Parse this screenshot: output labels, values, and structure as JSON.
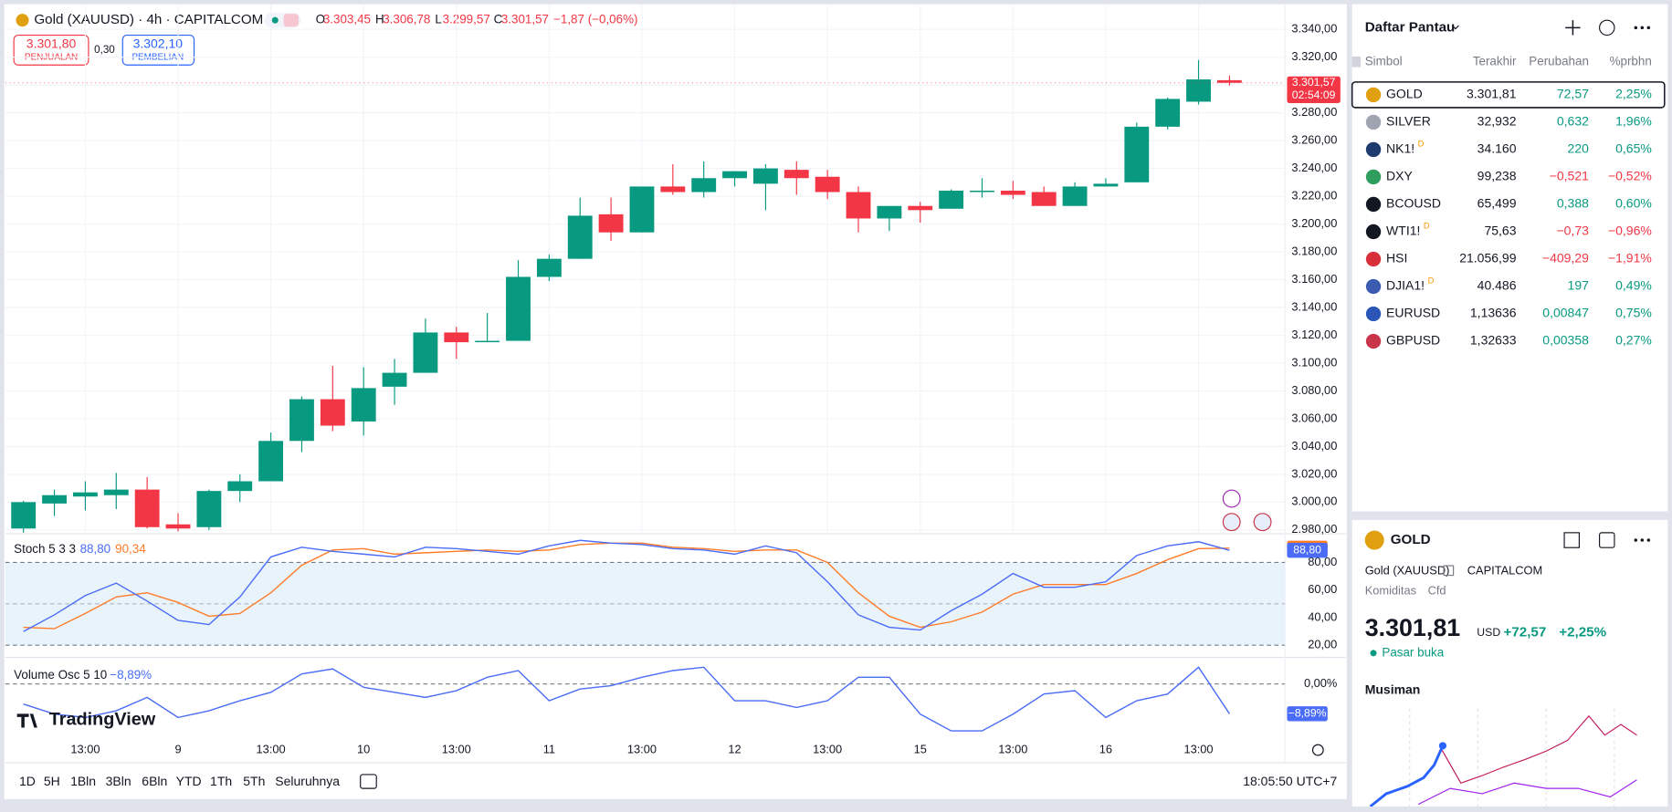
{
  "header": {
    "symbol": "Gold (XAUUSD) · 4h · CAPITALCOM",
    "ohlc": [
      {
        "key": "O",
        "value": "3.303,45"
      },
      {
        "key": "H",
        "value": "3.306,78"
      },
      {
        "key": "L",
        "value": "3.299,57"
      },
      {
        "key": "C",
        "value": "3.301,57"
      }
    ],
    "change": "−1,87 (−0,06%)",
    "sell": {
      "price": "3.301,80",
      "label": "PENJUALAN"
    },
    "spread": "0,30",
    "buy": {
      "price": "3.302,10",
      "label": "PEMBELIAN"
    }
  },
  "chart_data": {
    "type": "candlestick",
    "categories": [
      null,
      null,
      "13:00",
      null,
      null,
      "9",
      null,
      null,
      "13:00",
      null,
      null,
      "10",
      null,
      null,
      "13:00",
      null,
      null,
      "11",
      null,
      null,
      "13:00",
      null,
      null,
      "12",
      null,
      null,
      "13:00",
      null,
      null,
      "15",
      null,
      null,
      "13:00",
      null,
      null,
      "16",
      null,
      null,
      "13:00",
      null
    ],
    "open": [
      2981,
      2999,
      3004,
      3005,
      3009,
      2984,
      2982,
      3008,
      3015,
      3044,
      3074,
      3058,
      3083,
      3093,
      3122,
      3115,
      3116,
      3162,
      3175,
      3207,
      3194,
      3227,
      3223,
      3233,
      3229,
      3239,
      3234,
      3223,
      3204,
      3213,
      3211,
      3223,
      3224,
      3223,
      3213,
      3227,
      3230,
      3270,
      3288,
      3303.45
    ],
    "high": [
      3001,
      3009,
      3015,
      3021,
      3018,
      2992,
      3009,
      3020,
      3050,
      3076,
      3098,
      3097,
      3103,
      3132,
      3126,
      3136,
      3174,
      3178,
      3219,
      3219,
      3227,
      3243,
      3245,
      3238,
      3243,
      3245,
      3239,
      3227,
      3213,
      3216,
      3225,
      3233,
      3231,
      3227,
      3230,
      3233,
      3273,
      3291,
      3318,
      3306.78
    ],
    "low": [
      2978,
      2990,
      2994,
      2995,
      2981,
      2979,
      2980,
      3000,
      3015,
      3036,
      3051,
      3048,
      3070,
      3093,
      3103,
      3115,
      3116,
      3159,
      3175,
      3188,
      3194,
      3221,
      3219,
      3227,
      3210,
      3221,
      3218,
      3194,
      3195,
      3201,
      3211,
      3219,
      3218,
      3213,
      3213,
      3227,
      3230,
      3268,
      3286,
      3299.57
    ],
    "close": [
      3000,
      3005,
      3007,
      3009,
      2982,
      2981,
      3008,
      3015,
      3044,
      3074,
      3055,
      3082,
      3093,
      3122,
      3115,
      3116,
      3162,
      3175,
      3206,
      3194,
      3227,
      3223,
      3233,
      3238,
      3240,
      3233,
      3223,
      3204,
      3213,
      3210,
      3224,
      3224,
      3221,
      3213,
      3227,
      3229,
      3270,
      3290,
      3304,
      3301.57
    ],
    "up_color": "#089981",
    "down_color": "#f23645",
    "ylim": [
      2978,
      3355
    ],
    "yticks": [
      {
        "value": 2980,
        "label": "2.980,00"
      },
      {
        "value": 3000,
        "label": "3.000,00"
      },
      {
        "value": 3020,
        "label": "3.020,00"
      },
      {
        "value": 3040,
        "label": "3.040,00"
      },
      {
        "value": 3060,
        "label": "3.060,00"
      },
      {
        "value": 3080,
        "label": "3.080,00"
      },
      {
        "value": 3100,
        "label": "3.100,00"
      },
      {
        "value": 3120,
        "label": "3.120,00"
      },
      {
        "value": 3140,
        "label": "3.140,00"
      },
      {
        "value": 3160,
        "label": "3.160,00"
      },
      {
        "value": 3180,
        "label": "3.180,00"
      },
      {
        "value": 3200,
        "label": "3.200,00"
      },
      {
        "value": 3220,
        "label": "3.220,00"
      },
      {
        "value": 3240,
        "label": "3.240,00"
      },
      {
        "value": 3260,
        "label": "3.260,00"
      },
      {
        "value": 3280,
        "label": "3.280,00"
      },
      {
        "value": 3300,
        "label": "3.300,00"
      },
      {
        "value": 3320,
        "label": "3.320,00"
      },
      {
        "value": 3340,
        "label": "3.340,00"
      }
    ],
    "grid": true,
    "last_price_label": "3.301,57",
    "countdown": "02:54:09"
  },
  "stoch": {
    "title": "Stoch 5 3 3",
    "ylim": [
      12,
      100
    ],
    "yticks": [
      {
        "value": 20,
        "label": "20,00"
      },
      {
        "value": 40,
        "label": "40,00"
      },
      {
        "value": 60,
        "label": "60,00"
      },
      {
        "value": 80,
        "label": "80,00"
      }
    ],
    "band": [
      20,
      80
    ],
    "midline": 50,
    "series": [
      {
        "color": "#ff7c2a",
        "last_label": "90,34",
        "values": [
          33,
          32,
          43,
          55,
          58,
          51,
          41,
          43,
          58,
          78,
          89,
          90,
          86,
          87,
          88,
          89,
          88,
          89,
          93,
          94,
          94,
          91,
          90,
          88,
          89,
          89,
          80,
          58,
          41,
          33,
          37,
          44,
          57,
          64,
          64,
          64,
          72,
          82,
          90,
          90.34
        ]
      },
      {
        "color": "#4a6cf7",
        "last_label": "88,80",
        "values": [
          30,
          42,
          56,
          65,
          52,
          38,
          35,
          55,
          84,
          91,
          88,
          86,
          84,
          91,
          90,
          88,
          86,
          92,
          96,
          94,
          93,
          90,
          89,
          86,
          92,
          87,
          66,
          42,
          33,
          31,
          45,
          57,
          72,
          62,
          62,
          66,
          85,
          92,
          95,
          88.8
        ]
      }
    ]
  },
  "volume_osc": {
    "title": "Volume Osc 5 10",
    "ylim": [
      -17.5,
      7
    ],
    "yticks": [
      {
        "value": 0,
        "label": "0,00%"
      }
    ],
    "series": [
      {
        "color": "#4a6cf7",
        "last_label": "−8,89%",
        "values": [
          -6,
          -9,
          -10,
          -8,
          -4,
          -10,
          -8,
          -5,
          -2.5,
          3,
          4.5,
          -1,
          -2.5,
          -4,
          -2,
          2,
          4,
          -5,
          -1.5,
          -0.5,
          2,
          4,
          5,
          -5,
          -5,
          -7,
          -5,
          2,
          2,
          -9,
          -14,
          -14,
          -9,
          -3,
          -2,
          -10,
          -5,
          -3,
          5,
          -8.89
        ]
      }
    ]
  },
  "branding": {
    "logo": "TradingView"
  },
  "toolbar": {
    "ranges": [
      "1D",
      "5H",
      "1Bln",
      "3Bln",
      "6Bln",
      "YTD",
      "1Th",
      "5Th",
      "Seluruhnya"
    ],
    "clock": "18:05:50 UTC+7"
  },
  "watchlist": {
    "title": "Daftar Pantau",
    "columns": [
      "Simbol",
      "Terakhir",
      "Perubahan",
      "%prbhn"
    ],
    "rows": [
      {
        "symbol": "GOLD",
        "last": "3.301,81",
        "change": "72,57",
        "pct": "2,25%",
        "color": "#089981",
        "icon_color": "#e0a010"
      },
      {
        "symbol": "SILVER",
        "last": "32,932",
        "change": "0,632",
        "pct": "1,96%",
        "color": "#089981",
        "icon_color": "#a0a4b0"
      },
      {
        "symbol": "NK1!",
        "badge": "D",
        "last": "34.160",
        "change": "220",
        "pct": "0,65%",
        "color": "#089981",
        "icon_color": "#1e3a6e"
      },
      {
        "symbol": "DXY",
        "last": "99,238",
        "change": "−0,521",
        "pct": "−0,52%",
        "color": "#f23645",
        "icon_color": "#2e9d5e"
      },
      {
        "symbol": "BCOUSD",
        "last": "65,499",
        "change": "0,388",
        "pct": "0,60%",
        "color": "#089981",
        "icon_color": "#131722"
      },
      {
        "symbol": "WTI1!",
        "badge": "D",
        "last": "75,63",
        "change": "−0,73",
        "pct": "−0,96%",
        "color": "#f23645",
        "icon_color": "#131722"
      },
      {
        "symbol": "HSI",
        "last": "21.056,99",
        "change": "−409,29",
        "pct": "−1,91%",
        "color": "#f23645",
        "icon_color": "#d8303a"
      },
      {
        "symbol": "DJIA1!",
        "badge": "D",
        "last": "40.486",
        "change": "197",
        "pct": "0,49%",
        "color": "#089981",
        "icon_color": "#3a5bb0"
      },
      {
        "symbol": "EURUSD",
        "last": "1,13636",
        "change": "0,00847",
        "pct": "0,75%",
        "color": "#089981",
        "icon_color": "#2a56b8"
      },
      {
        "symbol": "GBPUSD",
        "last": "1,32633",
        "change": "0,00358",
        "pct": "0,27%",
        "color": "#089981",
        "icon_color": "#c8344a"
      }
    ]
  },
  "details": {
    "symbol": "GOLD",
    "name": "Gold (XAUUSD)",
    "exchange": "CAPITALCOM",
    "category": "Komiditas",
    "kind": "Cfd",
    "price": "3.301,81",
    "currency": "USD",
    "change": "+72,57",
    "pct": "+2,25%",
    "status": "Pasar buka",
    "section": "Musiman"
  }
}
